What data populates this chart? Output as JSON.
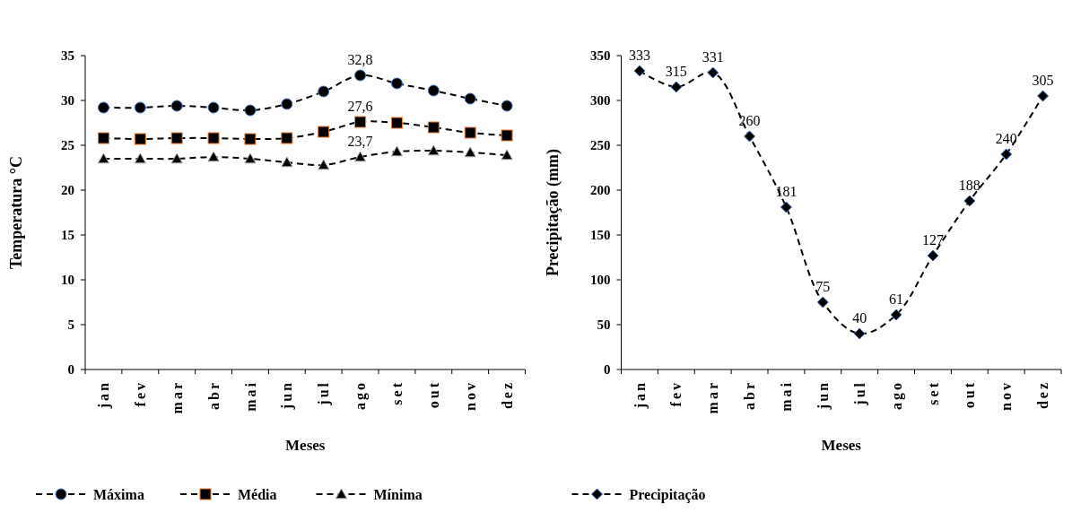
{
  "chart_data": [
    {
      "type": "line",
      "xlabel": "Meses",
      "ylabel": "Temperatura °C",
      "categories": [
        "jan",
        "fev",
        "mar",
        "abr",
        "mai",
        "jun",
        "jul",
        "ago",
        "set",
        "out",
        "nov",
        "dez"
      ],
      "ylim": [
        0,
        35
      ],
      "yticks": [
        0,
        5,
        10,
        15,
        20,
        25,
        30,
        35
      ],
      "legend": "bottom",
      "line_style": "dashed",
      "grid": false,
      "series": [
        {
          "name": "Máxima",
          "color": "#000000",
          "marker": "circle",
          "values": [
            29.2,
            29.2,
            29.4,
            29.2,
            28.9,
            29.6,
            31.0,
            32.8,
            31.9,
            31.1,
            30.2,
            29.4
          ],
          "value_labels": [
            null,
            null,
            null,
            null,
            null,
            null,
            null,
            "32,8",
            null,
            null,
            null,
            null
          ]
        },
        {
          "name": "Média",
          "color": "#000000",
          "marker": "square",
          "values": [
            25.8,
            25.7,
            25.8,
            25.8,
            25.7,
            25.8,
            26.5,
            27.6,
            27.5,
            27.0,
            26.4,
            26.1
          ],
          "value_labels": [
            null,
            null,
            null,
            null,
            null,
            null,
            null,
            "27,6",
            null,
            null,
            null,
            null
          ]
        },
        {
          "name": "Mínima",
          "color": "#000000",
          "marker": "triangle",
          "values": [
            23.5,
            23.5,
            23.5,
            23.7,
            23.5,
            23.1,
            22.8,
            23.7,
            24.3,
            24.4,
            24.2,
            23.9
          ],
          "value_labels": [
            null,
            null,
            null,
            null,
            null,
            null,
            null,
            "23,7",
            null,
            null,
            null,
            null
          ]
        }
      ]
    },
    {
      "type": "line",
      "xlabel": "Meses",
      "ylabel": "Precipitação (mm)",
      "categories": [
        "jan",
        "fev",
        "mar",
        "abr",
        "mai",
        "jun",
        "jul",
        "ago",
        "set",
        "out",
        "nov",
        "dez"
      ],
      "ylim": [
        0,
        350
      ],
      "yticks": [
        0,
        50,
        100,
        150,
        200,
        250,
        300,
        350
      ],
      "legend": "bottom",
      "line_style": "dashed",
      "grid": false,
      "data_labels": true,
      "series": [
        {
          "name": "Precipitação",
          "color": "#000000",
          "marker": "diamond",
          "values": [
            333,
            315,
            331,
            260,
            181,
            75,
            40,
            61,
            127,
            188,
            240,
            305
          ]
        }
      ]
    }
  ]
}
